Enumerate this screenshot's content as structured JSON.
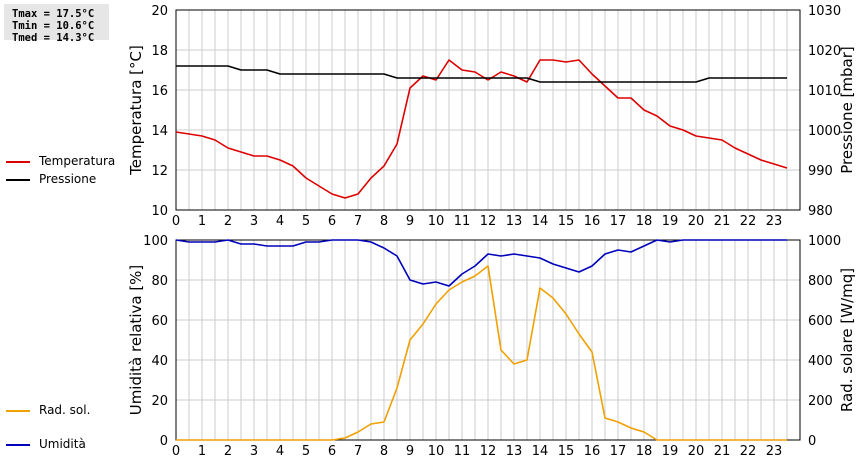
{
  "stats": {
    "tmax": "Tmax = 17.5°C",
    "tmin": "Tmin = 10.6°C",
    "tmed": "Tmed = 14.3°C"
  },
  "colors": {
    "temperature": "#dd0000",
    "pressure": "#000000",
    "humidity": "#0000bb",
    "radiation": "#f0a000",
    "grid": "#cccccc"
  },
  "legend": {
    "top": [
      {
        "label": "Temperatura",
        "color": "#dd0000"
      },
      {
        "label": "Pressione",
        "color": "#000000"
      }
    ],
    "bottom": [
      {
        "label": "Umidità",
        "color": "#0000bb"
      },
      {
        "label": "Rad. sol.",
        "color": "#f0a000"
      }
    ]
  },
  "chart_data": [
    {
      "type": "line",
      "xlabel": "",
      "ylabel": "Temperatura [°C]",
      "y2label": "Pressione [mbar]",
      "xlim": [
        0,
        24
      ],
      "ylim": [
        10,
        20
      ],
      "y2lim": [
        980,
        1030
      ],
      "x_ticks": [
        0,
        1,
        2,
        3,
        4,
        5,
        6,
        7,
        8,
        9,
        10,
        11,
        12,
        13,
        14,
        15,
        16,
        17,
        18,
        19,
        20,
        21,
        22,
        23
      ],
      "y_ticks": [
        10,
        12,
        14,
        16,
        18,
        20
      ],
      "y2_ticks": [
        980,
        990,
        1000,
        1010,
        1020,
        1030
      ],
      "grid": true,
      "series": [
        {
          "name": "Temperatura",
          "axis": "left",
          "x": [
            0,
            0.5,
            1,
            1.5,
            2,
            2.5,
            3,
            3.5,
            4,
            4.5,
            5,
            5.5,
            6,
            6.5,
            7,
            7.5,
            8,
            8.5,
            9,
            9.5,
            10,
            10.5,
            11,
            11.5,
            12,
            12.5,
            13,
            13.5,
            14,
            14.5,
            15,
            15.5,
            16,
            16.5,
            17,
            17.5,
            18,
            18.5,
            19,
            19.5,
            20,
            20.5,
            21,
            21.5,
            22,
            22.5,
            23,
            23.5
          ],
          "values": [
            13.9,
            13.8,
            13.7,
            13.5,
            13.1,
            12.9,
            12.7,
            12.7,
            12.5,
            12.2,
            11.6,
            11.2,
            10.8,
            10.6,
            10.8,
            11.6,
            12.2,
            13.3,
            16.1,
            16.7,
            16.5,
            17.5,
            17.0,
            16.9,
            16.5,
            16.9,
            16.7,
            16.4,
            17.5,
            17.5,
            17.4,
            17.5,
            16.8,
            16.2,
            15.6,
            15.6,
            15.0,
            14.7,
            14.2,
            14.0,
            13.7,
            13.6,
            13.5,
            13.1,
            12.8,
            12.5,
            12.3,
            12.1
          ]
        },
        {
          "name": "Pressione",
          "axis": "right",
          "x": [
            0,
            2,
            2.5,
            3.5,
            4,
            8,
            8.5,
            13.5,
            14,
            20,
            20.5,
            23.5
          ],
          "values": [
            1016,
            1016,
            1015,
            1015,
            1014,
            1014,
            1013,
            1013,
            1012,
            1012,
            1013,
            1013
          ]
        }
      ]
    },
    {
      "type": "line",
      "xlabel": "",
      "ylabel": "Umidità relativa [%]",
      "y2label": "Rad. solare [W/mq]",
      "xlim": [
        0,
        24
      ],
      "ylim": [
        0,
        100
      ],
      "y2lim": [
        0,
        1000
      ],
      "x_ticks": [
        0,
        1,
        2,
        3,
        4,
        5,
        6,
        7,
        8,
        9,
        10,
        11,
        12,
        13,
        14,
        15,
        16,
        17,
        18,
        19,
        20,
        21,
        22,
        23
      ],
      "y_ticks": [
        0,
        20,
        40,
        60,
        80,
        100
      ],
      "y2_ticks": [
        0,
        200,
        400,
        600,
        800,
        1000
      ],
      "grid": true,
      "series": [
        {
          "name": "Umidità",
          "axis": "left",
          "x": [
            0,
            0.5,
            1,
            1.5,
            2,
            2.5,
            3,
            3.5,
            4,
            4.5,
            5,
            5.5,
            6,
            6.5,
            7,
            7.5,
            8,
            8.5,
            9,
            9.5,
            10,
            10.5,
            11,
            11.5,
            12,
            12.5,
            13,
            13.5,
            14,
            14.5,
            15,
            15.5,
            16,
            16.5,
            17,
            17.5,
            18,
            18.5,
            19,
            19.5,
            20,
            20.5,
            21,
            21.5,
            22,
            22.5,
            23,
            23.5
          ],
          "values": [
            100,
            99,
            99,
            99,
            100,
            98,
            98,
            97,
            97,
            97,
            99,
            99,
            100,
            100,
            100,
            99,
            96,
            92,
            80,
            78,
            79,
            77,
            83,
            87,
            93,
            92,
            93,
            92,
            91,
            88,
            86,
            84,
            87,
            93,
            95,
            94,
            97,
            100,
            99,
            100,
            100,
            100,
            100,
            100,
            100,
            100,
            100,
            100
          ]
        },
        {
          "name": "Rad. sol.",
          "axis": "right",
          "x": [
            0,
            0.5,
            1,
            1.5,
            2,
            2.5,
            3,
            3.5,
            4,
            4.5,
            5,
            5.5,
            6,
            6.5,
            7,
            7.5,
            8,
            8.5,
            9,
            9.5,
            10,
            10.5,
            11,
            11.5,
            12,
            12.5,
            13,
            13.5,
            14,
            14.5,
            15,
            15.5,
            16,
            16.5,
            17,
            17.5,
            18,
            18.5,
            19,
            19.5,
            20,
            20.5,
            21,
            21.5,
            22,
            22.5,
            23,
            23.5
          ],
          "values": [
            0,
            0,
            0,
            0,
            0,
            0,
            0,
            0,
            0,
            0,
            0,
            0,
            0,
            10,
            40,
            80,
            90,
            260,
            500,
            580,
            680,
            750,
            790,
            820,
            870,
            450,
            380,
            400,
            760,
            710,
            630,
            530,
            440,
            110,
            90,
            60,
            40,
            0,
            0,
            0,
            0,
            0,
            0,
            0,
            0,
            0,
            0,
            0
          ]
        }
      ]
    }
  ]
}
